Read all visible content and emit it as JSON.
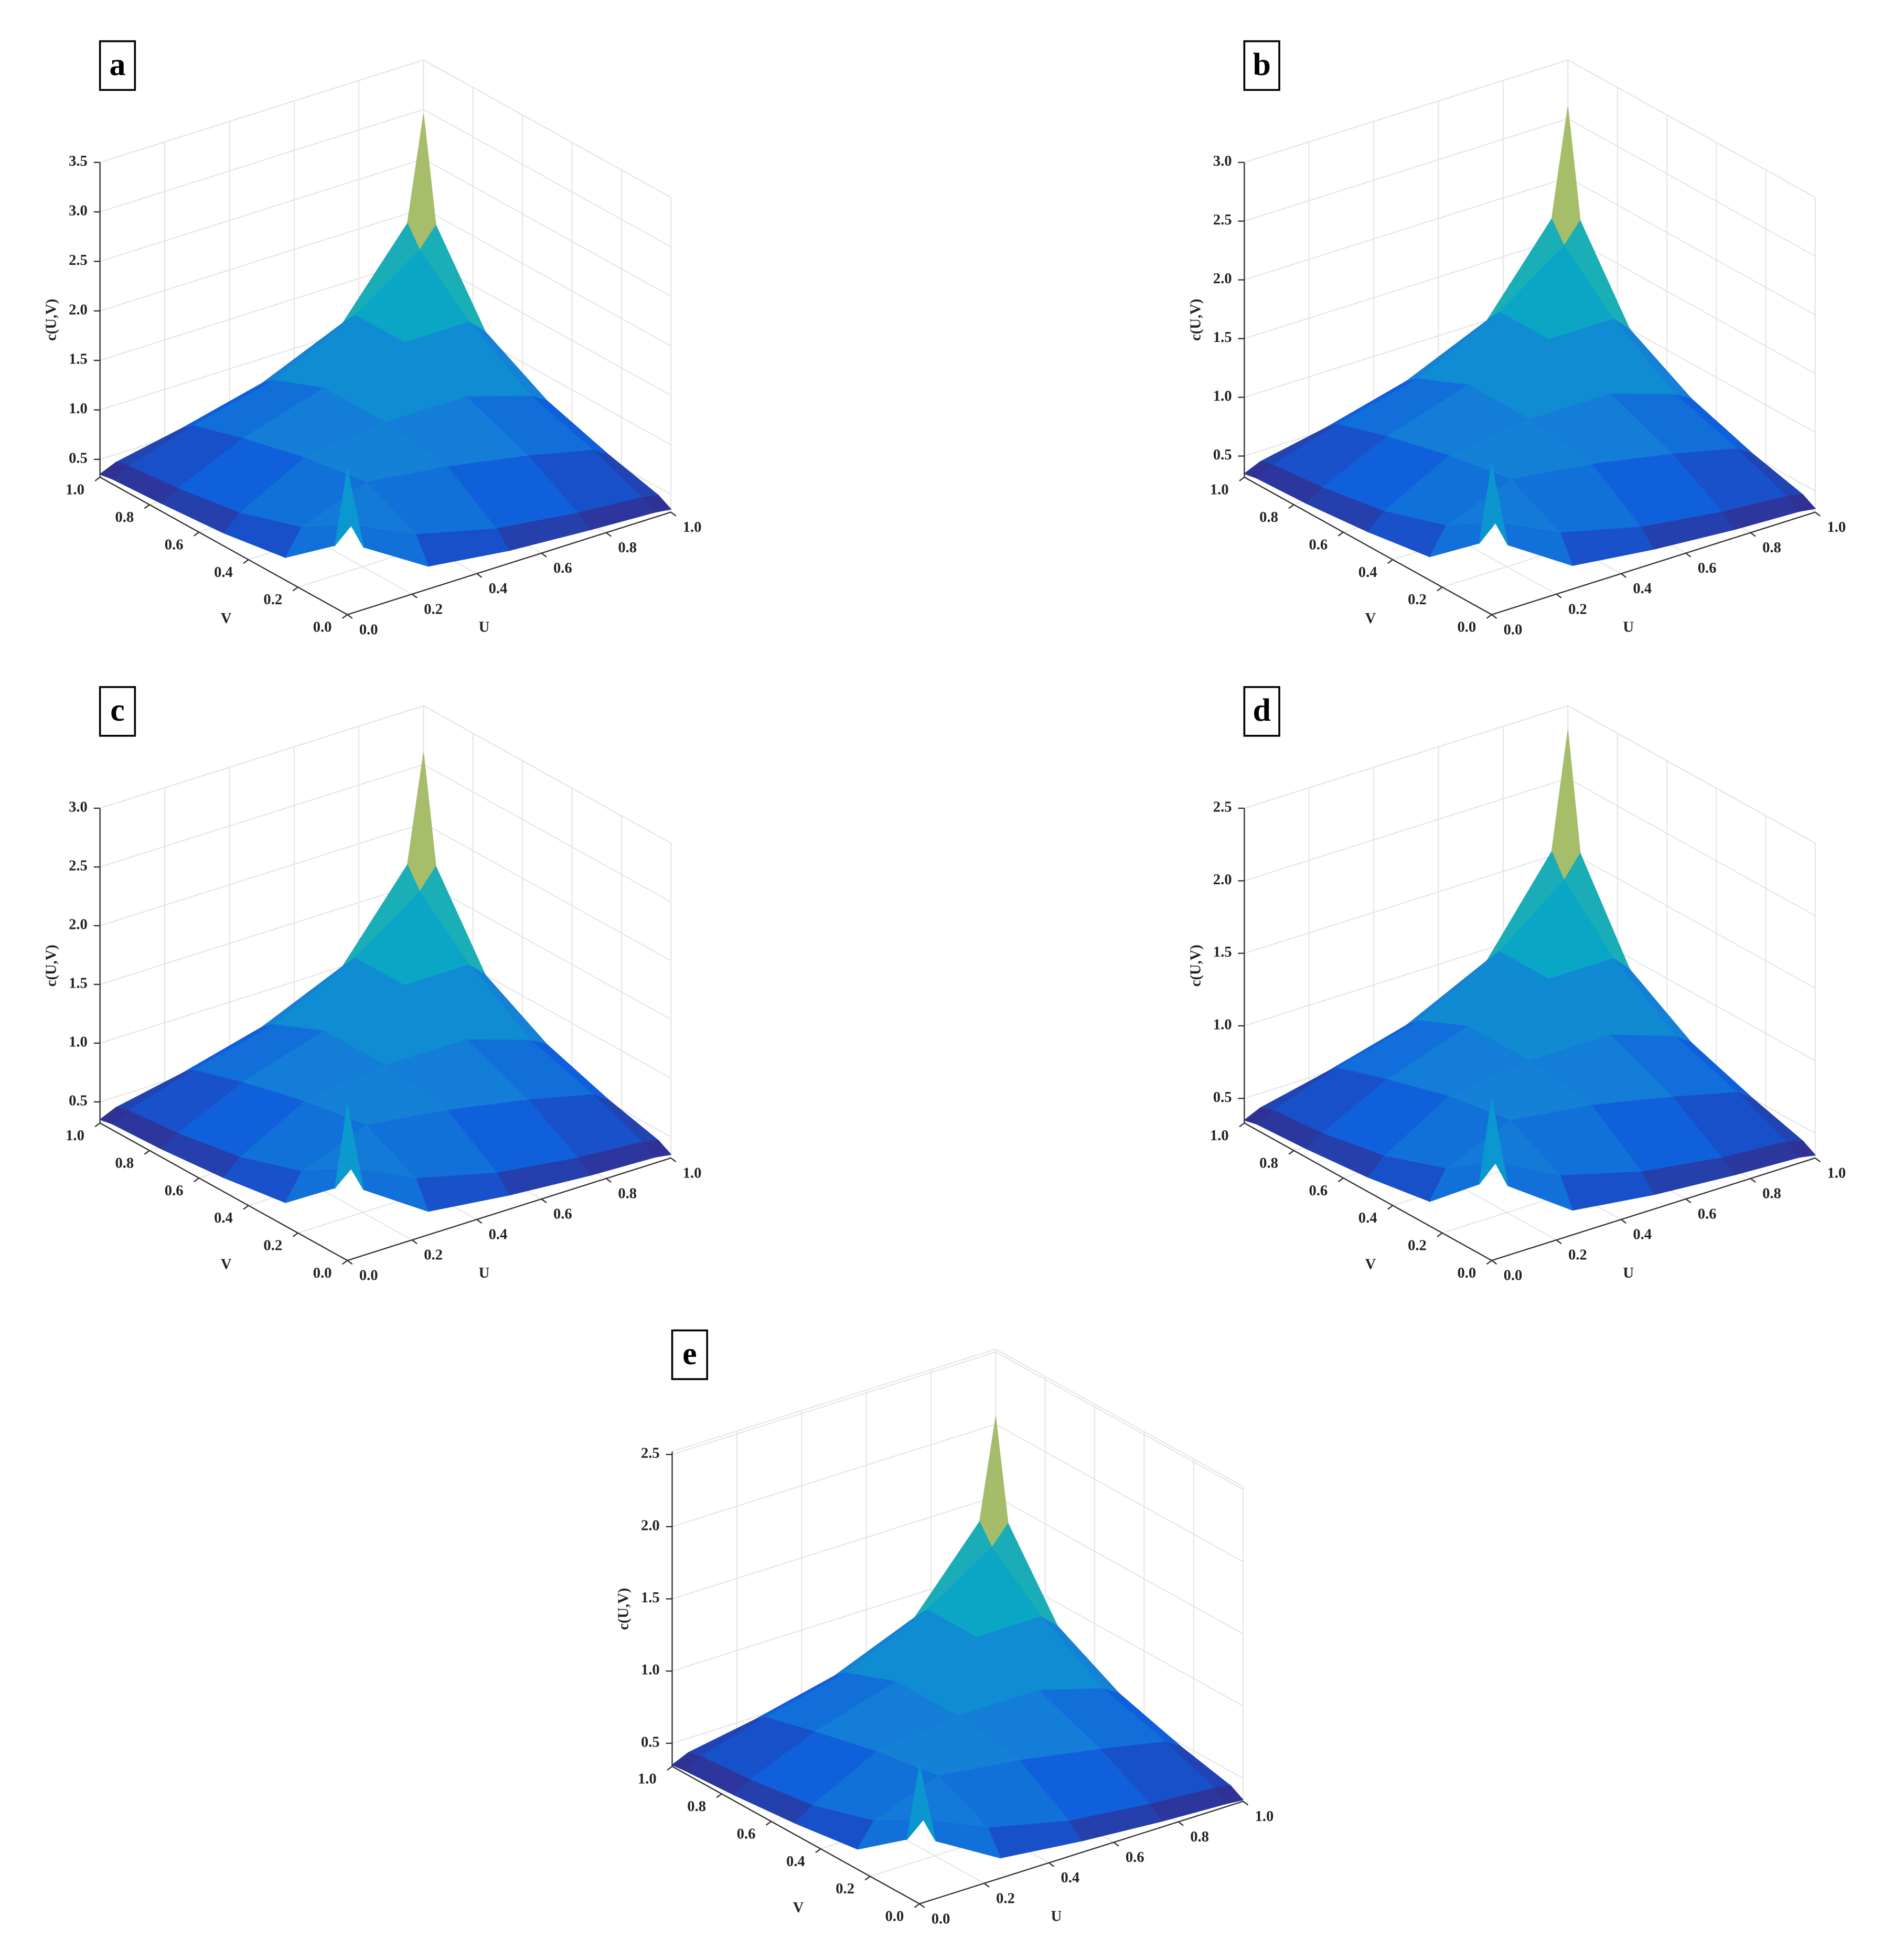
{
  "chart_data": [
    {
      "type": "surface",
      "label": "a",
      "zlabel": "c(U,V)",
      "xlabel": "U",
      "ylabel": "V",
      "x": [
        0,
        0.05,
        0.25,
        0.5,
        0.75,
        0.95,
        1
      ],
      "y": [
        0,
        0.05,
        0.25,
        0.5,
        0.75,
        0.95,
        1
      ],
      "z": [
        [
          1.8,
          0.95,
          0.55,
          0.45,
          0.4,
          0.37,
          0.35
        ],
        [
          0.95,
          1.1,
          0.8,
          0.6,
          0.5,
          0.45,
          0.42
        ],
        [
          0.55,
          0.8,
          1.05,
          0.95,
          0.8,
          0.65,
          0.55
        ],
        [
          0.45,
          0.6,
          0.95,
          1.05,
          1.05,
          0.85,
          0.75
        ],
        [
          0.4,
          0.5,
          0.8,
          1.05,
          1.25,
          1.25,
          1.1
        ],
        [
          0.37,
          0.45,
          0.65,
          0.85,
          1.25,
          1.7,
          1.9
        ],
        [
          0.35,
          0.42,
          0.55,
          0.75,
          1.1,
          1.9,
          2.95
        ]
      ],
      "xlim": [
        0,
        1
      ],
      "ylim": [
        0,
        1
      ],
      "zlim": [
        0.32,
        3.5
      ],
      "xticks": [
        {
          "value": 0,
          "label": "0.0"
        },
        0.2,
        0.4,
        0.6,
        0.8,
        {
          "value": 1,
          "label": "1.0"
        }
      ],
      "yticks": [
        {
          "value": 0,
          "label": "0.0"
        },
        0.2,
        0.4,
        0.6,
        0.8,
        {
          "value": 1,
          "label": "1.0"
        }
      ],
      "zticks": [
        0.5,
        {
          "value": 1,
          "label": "1.0"
        },
        1.5,
        {
          "value": 2,
          "label": "2.0"
        },
        2.5,
        {
          "value": 3,
          "label": "3.0"
        },
        3.5
      ],
      "grid": true,
      "colormap": [
        "#352a87",
        "#0f5cdd",
        "#1481d6",
        "#06a4ca",
        "#2eb7a4",
        "#87bf77",
        "#d1bb59",
        "#fec832",
        "#f9fb0e"
      ]
    },
    {
      "type": "surface",
      "label": "b",
      "zlabel": "c(U,V)",
      "xlabel": "U",
      "ylabel": "V",
      "x": [
        0,
        0.05,
        0.25,
        0.5,
        0.75,
        0.95,
        1
      ],
      "y": [
        0,
        0.05,
        0.25,
        0.5,
        0.75,
        0.95,
        1
      ],
      "z": [
        [
          1.6,
          0.87,
          0.52,
          0.44,
          0.39,
          0.37,
          0.35
        ],
        [
          0.87,
          1.0,
          0.74,
          0.57,
          0.48,
          0.44,
          0.41
        ],
        [
          0.52,
          0.74,
          0.96,
          0.87,
          0.74,
          0.61,
          0.52
        ],
        [
          0.44,
          0.57,
          0.87,
          0.96,
          0.96,
          0.78,
          0.7
        ],
        [
          0.39,
          0.48,
          0.74,
          0.96,
          1.13,
          1.13,
          1.0
        ],
        [
          0.37,
          0.44,
          0.61,
          0.78,
          1.13,
          1.52,
          1.69
        ],
        [
          0.35,
          0.41,
          0.52,
          0.7,
          1.0,
          1.69,
          2.6
        ]
      ],
      "xlim": [
        0,
        1
      ],
      "ylim": [
        0,
        1
      ],
      "zlim": [
        0.32,
        3.0
      ],
      "xticks": [
        {
          "value": 0,
          "label": "0.0"
        },
        0.2,
        0.4,
        0.6,
        0.8,
        {
          "value": 1,
          "label": "1.0"
        }
      ],
      "yticks": [
        {
          "value": 0,
          "label": "0.0"
        },
        0.2,
        0.4,
        0.6,
        0.8,
        {
          "value": 1,
          "label": "1.0"
        }
      ],
      "zticks": [
        0.5,
        {
          "value": 1,
          "label": "1.0"
        },
        1.5,
        {
          "value": 2,
          "label": "2.0"
        },
        2.5,
        {
          "value": 3,
          "label": "3.0"
        }
      ],
      "grid": true,
      "colormap": [
        "#352a87",
        "#0f5cdd",
        "#1481d6",
        "#06a4ca",
        "#2eb7a4",
        "#87bf77",
        "#d1bb59",
        "#fec832",
        "#f9fb0e"
      ]
    },
    {
      "type": "surface",
      "label": "c",
      "zlabel": "c(U,V)",
      "xlabel": "U",
      "ylabel": "V",
      "x": [
        0,
        0.05,
        0.25,
        0.5,
        0.75,
        0.95,
        1
      ],
      "y": [
        0,
        0.05,
        0.25,
        0.5,
        0.75,
        0.95,
        1
      ],
      "z": [
        [
          1.65,
          0.88,
          0.52,
          0.44,
          0.39,
          0.37,
          0.35
        ],
        [
          0.88,
          1.0,
          0.74,
          0.57,
          0.48,
          0.44,
          0.41
        ],
        [
          0.52,
          0.74,
          0.96,
          0.87,
          0.74,
          0.61,
          0.52
        ],
        [
          0.44,
          0.57,
          0.87,
          0.96,
          0.96,
          0.78,
          0.7
        ],
        [
          0.39,
          0.48,
          0.74,
          0.96,
          1.13,
          1.13,
          1.0
        ],
        [
          0.37,
          0.44,
          0.61,
          0.78,
          1.13,
          1.52,
          1.69
        ],
        [
          0.35,
          0.41,
          0.52,
          0.7,
          1.0,
          1.69,
          2.6
        ]
      ],
      "xlim": [
        0,
        1
      ],
      "ylim": [
        0,
        1
      ],
      "zlim": [
        0.32,
        3.0
      ],
      "xticks": [
        {
          "value": 0,
          "label": "0.0"
        },
        0.2,
        0.4,
        0.6,
        0.8,
        {
          "value": 1,
          "label": "1.0"
        }
      ],
      "yticks": [
        {
          "value": 0,
          "label": "0.0"
        },
        0.2,
        0.4,
        0.6,
        0.8,
        {
          "value": 1,
          "label": "1.0"
        }
      ],
      "zticks": [
        0.5,
        {
          "value": 1,
          "label": "1.0"
        },
        1.5,
        {
          "value": 2,
          "label": "2.0"
        },
        2.5,
        {
          "value": 3,
          "label": "3.0"
        }
      ],
      "grid": true,
      "colormap": [
        "#352a87",
        "#0f5cdd",
        "#1481d6",
        "#06a4ca",
        "#2eb7a4",
        "#87bf77",
        "#d1bb59",
        "#fec832",
        "#f9fb0e"
      ]
    },
    {
      "type": "surface",
      "label": "d",
      "zlabel": "c(U,V)",
      "xlabel": "U",
      "ylabel": "V",
      "x": [
        0,
        0.05,
        0.25,
        0.5,
        0.75,
        0.95,
        1
      ],
      "y": [
        0,
        0.05,
        0.25,
        0.5,
        0.75,
        0.95,
        1
      ],
      "z": [
        [
          1.45,
          0.81,
          0.5,
          0.43,
          0.39,
          0.37,
          0.35
        ],
        [
          0.81,
          0.92,
          0.69,
          0.54,
          0.46,
          0.43,
          0.4
        ],
        [
          0.5,
          0.69,
          0.88,
          0.81,
          0.69,
          0.58,
          0.5
        ],
        [
          0.43,
          0.54,
          0.81,
          0.88,
          0.88,
          0.73,
          0.65
        ],
        [
          0.39,
          0.46,
          0.69,
          0.88,
          1.03,
          1.03,
          0.92
        ],
        [
          0.37,
          0.43,
          0.58,
          0.73,
          1.03,
          1.38,
          1.53
        ],
        [
          0.35,
          0.4,
          0.5,
          0.65,
          0.92,
          1.53,
          2.33
        ]
      ],
      "xlim": [
        0,
        1
      ],
      "ylim": [
        0,
        1
      ],
      "zlim": [
        0.33,
        2.5
      ],
      "xticks": [
        {
          "value": 0,
          "label": "0.0"
        },
        0.2,
        0.4,
        0.6,
        0.8,
        {
          "value": 1,
          "label": "1.0"
        }
      ],
      "yticks": [
        {
          "value": 0,
          "label": "0.0"
        },
        0.2,
        0.4,
        0.6,
        0.8,
        {
          "value": 1,
          "label": "1.0"
        }
      ],
      "zticks": [
        0.5,
        {
          "value": 1,
          "label": "1.0"
        },
        1.5,
        {
          "value": 2,
          "label": "2.0"
        },
        2.5
      ],
      "grid": true,
      "colormap": [
        "#352a87",
        "#0f5cdd",
        "#1481d6",
        "#06a4ca",
        "#2eb7a4",
        "#87bf77",
        "#d1bb59",
        "#fec832",
        "#f9fb0e"
      ]
    },
    {
      "type": "surface",
      "label": "e",
      "zlabel": "c(U,V)",
      "xlabel": "U",
      "ylabel": "V",
      "x": [
        0,
        0.05,
        0.25,
        0.5,
        0.75,
        0.95,
        1
      ],
      "y": [
        0,
        0.05,
        0.25,
        0.5,
        0.75,
        0.95,
        1
      ],
      "z": [
        [
          1.3,
          0.74,
          0.48,
          0.42,
          0.38,
          0.36,
          0.35
        ],
        [
          0.74,
          0.84,
          0.64,
          0.51,
          0.45,
          0.42,
          0.4
        ],
        [
          0.48,
          0.64,
          0.81,
          0.74,
          0.64,
          0.55,
          0.48
        ],
        [
          0.42,
          0.51,
          0.74,
          0.81,
          0.81,
          0.68,
          0.61
        ],
        [
          0.38,
          0.45,
          0.64,
          0.81,
          0.94,
          0.94,
          0.84
        ],
        [
          0.36,
          0.42,
          0.55,
          0.68,
          0.94,
          1.23,
          1.36
        ],
        [
          0.35,
          0.4,
          0.48,
          0.61,
          0.84,
          1.36,
          2.05
        ]
      ],
      "xlim": [
        0,
        1
      ],
      "ylim": [
        0,
        1
      ],
      "zlim": [
        0.34,
        2.52
      ],
      "xticks": [
        {
          "value": 0,
          "label": "0.0"
        },
        0.2,
        0.4,
        0.6,
        0.8,
        {
          "value": 1,
          "label": "1.0"
        }
      ],
      "yticks": [
        {
          "value": 0,
          "label": "0.0"
        },
        0.2,
        0.4,
        0.6,
        0.8,
        {
          "value": 1,
          "label": "1.0"
        }
      ],
      "zticks": [
        0.5,
        {
          "value": 1,
          "label": "1.0"
        },
        1.5,
        {
          "value": 2,
          "label": "2.0"
        },
        2.5
      ],
      "grid": true,
      "colormap": [
        "#352a87",
        "#0f5cdd",
        "#1481d6",
        "#06a4ca",
        "#2eb7a4",
        "#87bf77",
        "#d1bb59",
        "#fec832",
        "#f9fb0e"
      ]
    }
  ]
}
